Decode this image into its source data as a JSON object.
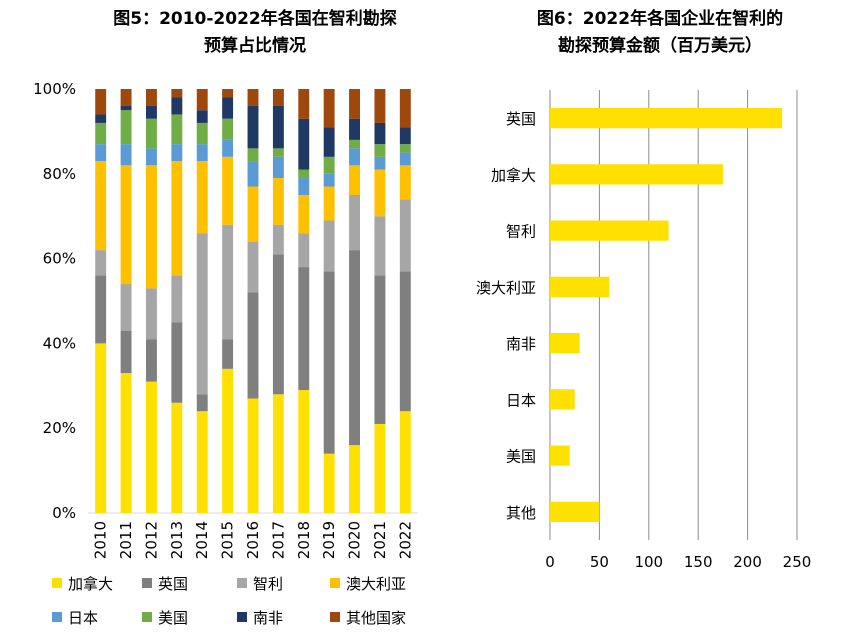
{
  "left_chart": {
    "title_line1": "图5：2010-2022年各国在智利勘探",
    "title_line2": "预算占比情况"
  },
  "right_chart": {
    "title_line1": "图6：2022年各国企业在智利的",
    "title_line2": "勘探预算金额（百万美元）"
  },
  "chart_data": [
    {
      "type": "bar",
      "stacked": true,
      "percent_stacked": true,
      "categories": [
        "2010",
        "2011",
        "2012",
        "2013",
        "2014",
        "2015",
        "2016",
        "2017",
        "2018",
        "2019",
        "2020",
        "2021",
        "2022"
      ],
      "ylim": [
        0,
        100
      ],
      "yticks": [
        "0%",
        "20%",
        "40%",
        "60%",
        "80%",
        "100%"
      ],
      "legend_position": "bottom",
      "series": [
        {
          "name": "加拿大",
          "color": "#FFE000",
          "values": [
            40,
            33,
            31,
            26,
            24,
            34,
            27,
            28,
            29,
            14,
            16,
            21,
            24
          ]
        },
        {
          "name": "英国",
          "color": "#7F7F7F",
          "values": [
            16,
            10,
            10,
            19,
            4,
            7,
            25,
            33,
            29,
            43,
            46,
            35,
            33
          ]
        },
        {
          "name": "智利",
          "color": "#A6A6A6",
          "values": [
            6,
            11,
            12,
            11,
            38,
            27,
            12,
            7,
            8,
            12,
            13,
            14,
            17
          ]
        },
        {
          "name": "澳大利亚",
          "color": "#FFC000",
          "values": [
            21,
            28,
            29,
            27,
            17,
            16,
            13,
            11,
            9,
            8,
            7,
            11,
            8
          ]
        },
        {
          "name": "日本",
          "color": "#5B9BD5",
          "values": [
            4,
            5,
            4,
            4,
            4,
            4,
            6,
            5,
            4,
            3,
            4,
            3,
            3
          ]
        },
        {
          "name": "美国",
          "color": "#70AD47",
          "values": [
            5,
            8,
            7,
            7,
            5,
            5,
            3,
            2,
            2,
            4,
            2,
            3,
            2
          ]
        },
        {
          "name": "南非",
          "color": "#203864",
          "values": [
            2,
            1,
            3,
            4,
            3,
            5,
            10,
            10,
            12,
            7,
            5,
            5,
            4
          ]
        },
        {
          "name": "其他国家",
          "color": "#9E480E",
          "values": [
            6,
            4,
            4,
            2,
            5,
            2,
            4,
            4,
            7,
            9,
            7,
            8,
            9
          ]
        }
      ]
    },
    {
      "type": "bar",
      "orientation": "horizontal",
      "categories": [
        "英国",
        "加拿大",
        "智利",
        "澳大利亚",
        "南非",
        "日本",
        "美国",
        "其他"
      ],
      "values": [
        235,
        175,
        120,
        60,
        30,
        25,
        20,
        50
      ],
      "xlim": [
        0,
        250
      ],
      "xticks": [
        "0",
        "50",
        "100",
        "150",
        "200",
        "250"
      ],
      "color": "#FFE000",
      "grid": "vertical"
    }
  ]
}
